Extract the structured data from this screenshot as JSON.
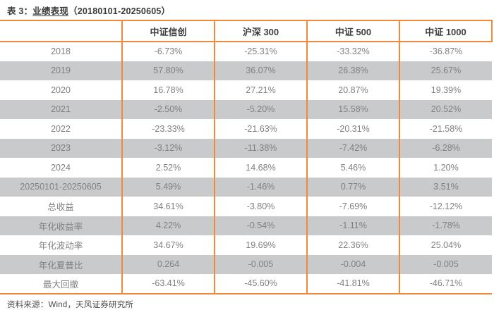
{
  "title": {
    "prefix": "表 3：",
    "name": "业绩表现",
    "range": "（20180101-20250605）"
  },
  "table": {
    "columns": [
      "",
      "中证信创",
      "沪深 300",
      "中证 500",
      "中证 1000"
    ],
    "rows": [
      {
        "label": "2018",
        "values": [
          "-6.73%",
          "-25.31%",
          "-33.32%",
          "-36.87%"
        ]
      },
      {
        "label": "2019",
        "values": [
          "57.80%",
          "36.07%",
          "26.38%",
          "25.67%"
        ]
      },
      {
        "label": "2020",
        "values": [
          "16.78%",
          "27.21%",
          "20.87%",
          "19.39%"
        ]
      },
      {
        "label": "2021",
        "values": [
          "-2.50%",
          "-5.20%",
          "15.58%",
          "20.52%"
        ]
      },
      {
        "label": "2022",
        "values": [
          "-23.33%",
          "-21.63%",
          "-20.31%",
          "-21.58%"
        ]
      },
      {
        "label": "2023",
        "values": [
          "-3.12%",
          "-11.38%",
          "-7.42%",
          "-6.28%"
        ]
      },
      {
        "label": "2024",
        "values": [
          "2.52%",
          "14.68%",
          "5.46%",
          "1.20%"
        ]
      },
      {
        "label": "20250101-20250605",
        "values": [
          "5.49%",
          "-1.46%",
          "0.77%",
          "3.51%"
        ]
      },
      {
        "label": "总收益",
        "values": [
          "34.61%",
          "-3.80%",
          "-7.69%",
          "-12.12%"
        ]
      },
      {
        "label": "年化收益率",
        "values": [
          "4.22%",
          "-0.54%",
          "-1.11%",
          "-1.78%"
        ]
      },
      {
        "label": "年化波动率",
        "values": [
          "34.67%",
          "19.69%",
          "22.36%",
          "25.04%"
        ]
      },
      {
        "label": "年化夏普比",
        "values": [
          "0.264",
          "-0.005",
          "-0.004",
          "-0.005"
        ]
      },
      {
        "label": "最大回撤",
        "values": [
          "-63.41%",
          "-45.60%",
          "-41.81%",
          "-46.71%"
        ]
      }
    ]
  },
  "footer": {
    "source": "资料来源：Wind，天风证券研究所"
  },
  "colors": {
    "border_orange": "#F0883E",
    "stripe_gray": "#C9CACB",
    "body_text": "#808080",
    "header_text": "#3F3F3F",
    "footer_text": "#4C4C4C"
  }
}
